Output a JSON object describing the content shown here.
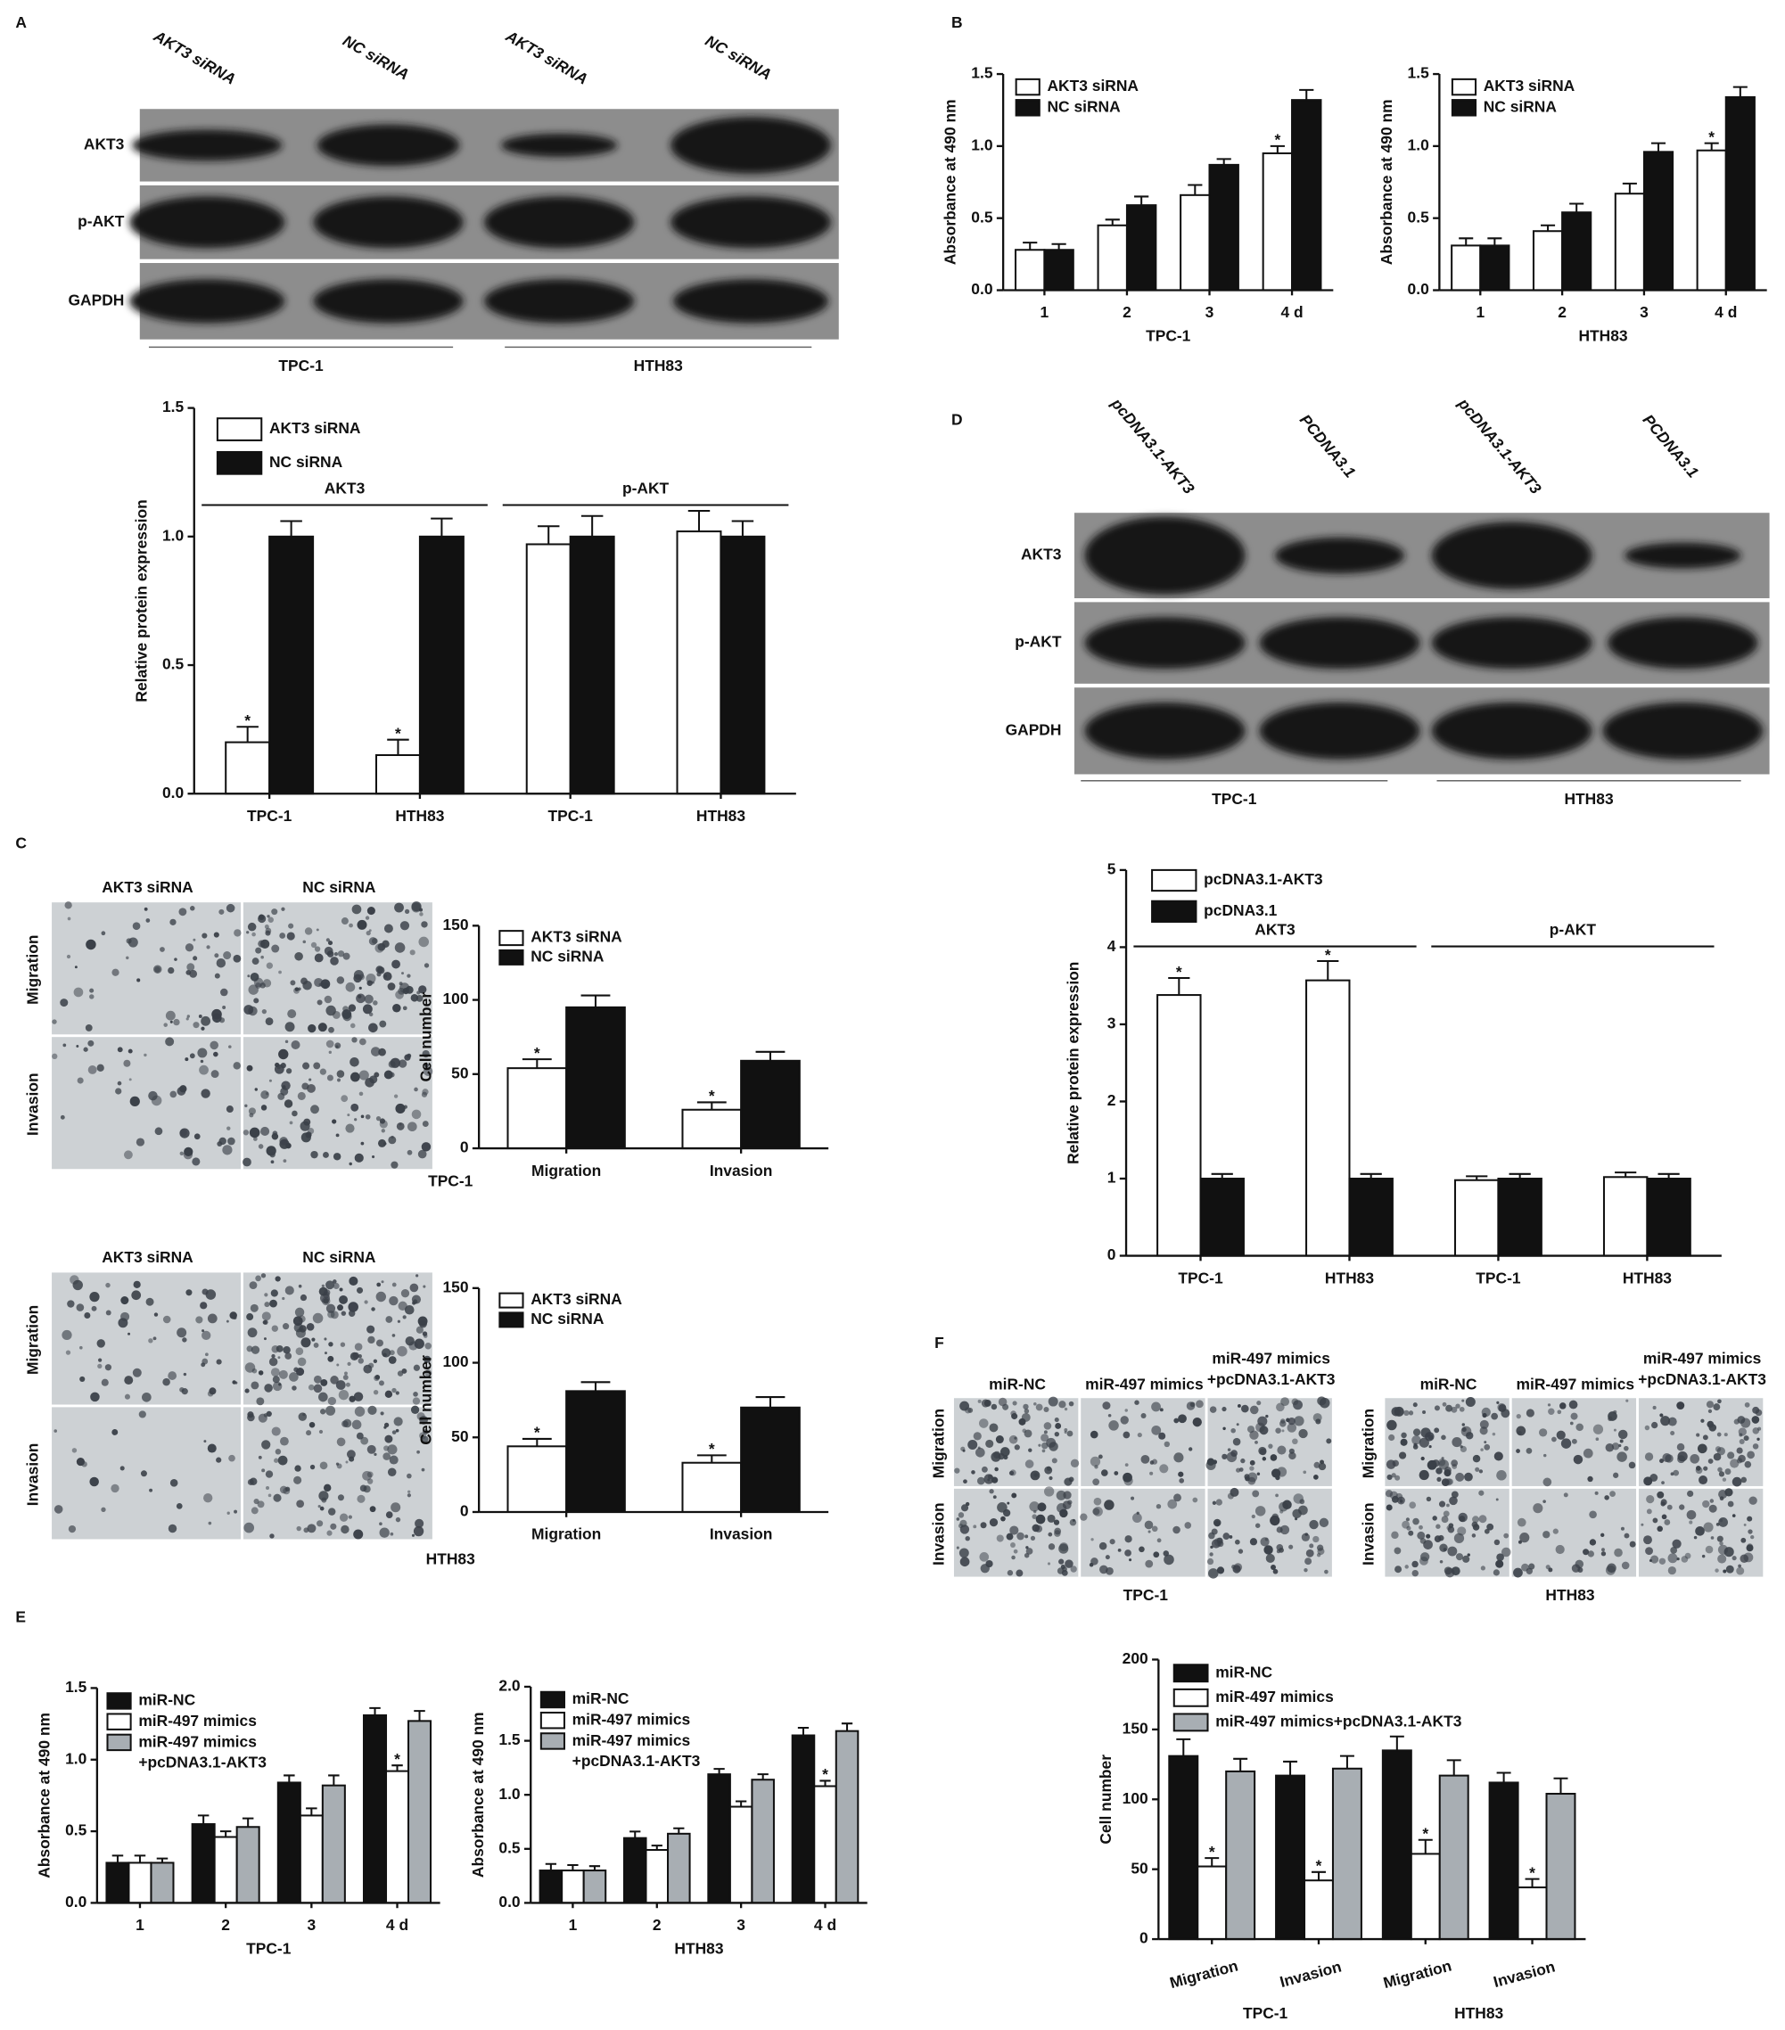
{
  "figure": {
    "panel_labels": [
      "A",
      "B",
      "C",
      "D",
      "E",
      "F"
    ],
    "blots": [
      {
        "lanes": [
          "AKT3 siRNA",
          "NC siRNA",
          "AKT3 siRNA",
          "NC siRNA"
        ],
        "rows": [
          "AKT3",
          "p-AKT",
          "GAPDH"
        ],
        "groups": [
          "TPC-1",
          "HTH83"
        ]
      },
      {
        "lanes": [
          "pcDNA3.1-AKT3",
          "PCDNA3.1",
          "pcDNA3.1-AKT3",
          "PCDNA3.1"
        ],
        "rows": [
          "AKT3",
          "p-AKT",
          "GAPDH"
        ],
        "groups": [
          "TPC-1",
          "HTH83"
        ]
      }
    ],
    "micrographs": [
      {
        "columns": [
          "AKT3 siRNA",
          "NC siRNA"
        ],
        "rows": [
          "Migration",
          "Invasion"
        ],
        "label": "TPC-1"
      },
      {
        "columns": [
          "AKT3 siRNA",
          "NC siRNA"
        ],
        "rows": [
          "Migration",
          "Invasion"
        ],
        "label": "HTH83"
      },
      {
        "columns": [
          "miR-NC",
          "miR-497 mimics",
          "miR-497 mimics\n+pcDNA3.1-AKT3"
        ],
        "rows": [
          "Migration",
          "Invasion"
        ],
        "label": "TPC-1"
      },
      {
        "columns": [
          "miR-NC",
          "miR-497 mimics",
          "miR-497 mimics\n+pcDNA3.1-AKT3"
        ],
        "rows": [
          "Migration",
          "Invasion"
        ],
        "label": "HTH83"
      }
    ]
  },
  "chart_data": [
    {
      "type": "bar",
      "ylabel": "Relative protein expression",
      "categories": [
        "TPC-1",
        "HTH83",
        "TPC-1",
        "HTH83"
      ],
      "series": [
        {
          "name": "AKT3 siRNA",
          "color": "#ffffff",
          "values": [
            0.2,
            0.15,
            0.97,
            1.02
          ],
          "errors": [
            0.06,
            0.06,
            0.07,
            0.08
          ]
        },
        {
          "name": "NC siRNA",
          "color": "#111111",
          "values": [
            1.0,
            1.0,
            1.0,
            1.0
          ],
          "errors": [
            0.06,
            0.07,
            0.08,
            0.06
          ]
        }
      ],
      "ylim": [
        0,
        1.5
      ],
      "yticks": [
        {
          "value": 0,
          "label": "0.0"
        },
        0.5,
        {
          "value": 1,
          "label": "1.0"
        },
        1.5
      ],
      "groups": [
        {
          "label": "AKT3",
          "first": 0,
          "last": 1
        },
        {
          "label": "p-AKT",
          "first": 2,
          "last": 3
        }
      ],
      "annotations": [
        {
          "text": "*",
          "series": 0,
          "index": 0
        },
        {
          "text": "*",
          "series": 0,
          "index": 1
        }
      ],
      "legend": "upper left"
    },
    {
      "type": "bar",
      "ylabel": "Absorbance at 490 nm",
      "xlabel": "TPC-1",
      "categories": [
        "1",
        "2",
        "3",
        "4 d"
      ],
      "series": [
        {
          "name": "AKT3 siRNA",
          "color": "#ffffff",
          "values": [
            0.28,
            0.45,
            0.66,
            0.95
          ],
          "errors": [
            0.05,
            0.04,
            0.07,
            0.05
          ]
        },
        {
          "name": "NC siRNA",
          "color": "#111111",
          "values": [
            0.28,
            0.59,
            0.87,
            1.32
          ],
          "errors": [
            0.04,
            0.06,
            0.04,
            0.07
          ]
        }
      ],
      "ylim": [
        0,
        1.5
      ],
      "yticks": [
        {
          "value": 0,
          "label": "0.0"
        },
        0.5,
        {
          "value": 1,
          "label": "1.0"
        },
        1.5
      ],
      "annotations": [
        {
          "text": "*",
          "series": 0,
          "index": 3
        }
      ],
      "legend": "upper left"
    },
    {
      "type": "bar",
      "ylabel": "Absorbance at 490 nm",
      "xlabel": "HTH83",
      "categories": [
        "1",
        "2",
        "3",
        "4 d"
      ],
      "series": [
        {
          "name": "AKT3 siRNA",
          "color": "#ffffff",
          "values": [
            0.31,
            0.41,
            0.67,
            0.97
          ],
          "errors": [
            0.05,
            0.04,
            0.07,
            0.05
          ]
        },
        {
          "name": "NC siRNA",
          "color": "#111111",
          "values": [
            0.31,
            0.54,
            0.96,
            1.34
          ],
          "errors": [
            0.05,
            0.06,
            0.06,
            0.07
          ]
        }
      ],
      "ylim": [
        0,
        1.5
      ],
      "yticks": [
        {
          "value": 0,
          "label": "0.0"
        },
        0.5,
        {
          "value": 1,
          "label": "1.0"
        },
        1.5
      ],
      "annotations": [
        {
          "text": "*",
          "series": 0,
          "index": 3
        }
      ],
      "legend": "upper left"
    },
    {
      "type": "bar",
      "ylabel": "Cell number",
      "categories": [
        "Migration",
        "Invasion"
      ],
      "series": [
        {
          "name": "AKT3 siRNA",
          "color": "#ffffff",
          "values": [
            54,
            26
          ],
          "errors": [
            6,
            5
          ]
        },
        {
          "name": "NC siRNA",
          "color": "#111111",
          "values": [
            95,
            59
          ],
          "errors": [
            8,
            6
          ]
        }
      ],
      "ylim": [
        0,
        150
      ],
      "yticks": [
        0,
        50,
        100,
        150
      ],
      "annotations": [
        {
          "text": "*",
          "series": 0,
          "index": 0
        },
        {
          "text": "*",
          "series": 0,
          "index": 1
        }
      ],
      "legend": "upper left"
    },
    {
      "type": "bar",
      "ylabel": "Cell number",
      "categories": [
        "Migration",
        "Invasion"
      ],
      "series": [
        {
          "name": "AKT3 siRNA",
          "color": "#ffffff",
          "values": [
            44,
            33
          ],
          "errors": [
            5,
            5
          ]
        },
        {
          "name": "NC siRNA",
          "color": "#111111",
          "values": [
            81,
            70
          ],
          "errors": [
            6,
            7
          ]
        }
      ],
      "ylim": [
        0,
        150
      ],
      "yticks": [
        0,
        50,
        100,
        150
      ],
      "annotations": [
        {
          "text": "*",
          "series": 0,
          "index": 0
        },
        {
          "text": "*",
          "series": 0,
          "index": 1
        }
      ],
      "legend": "upper left"
    },
    {
      "type": "bar",
      "ylabel": "Relative protein expression",
      "categories": [
        "TPC-1",
        "HTH83",
        "TPC-1",
        "HTH83"
      ],
      "series": [
        {
          "name": "pcDNA3.1-AKT3",
          "color": "#ffffff",
          "values": [
            3.38,
            3.57,
            0.98,
            1.02
          ],
          "errors": [
            0.22,
            0.25,
            0.05,
            0.06
          ]
        },
        {
          "name": "pcDNA3.1",
          "color": "#111111",
          "values": [
            1.0,
            1.0,
            1.0,
            1.0
          ],
          "errors": [
            0.06,
            0.06,
            0.06,
            0.06
          ]
        }
      ],
      "ylim": [
        0,
        5
      ],
      "yticks": [
        0,
        1,
        2,
        3,
        4,
        5
      ],
      "groups": [
        {
          "label": "AKT3",
          "first": 0,
          "last": 1
        },
        {
          "label": "p-AKT",
          "first": 2,
          "last": 3
        }
      ],
      "annotations": [
        {
          "text": "*",
          "series": 0,
          "index": 0
        },
        {
          "text": "*",
          "series": 0,
          "index": 1
        }
      ],
      "legend": "upper left"
    },
    {
      "type": "bar",
      "ylabel": "Absorbance at 490 nm",
      "xlabel": "TPC-1",
      "categories": [
        "1",
        "2",
        "3",
        "4 d"
      ],
      "series": [
        {
          "name": "miR-NC",
          "color": "#111111",
          "values": [
            0.28,
            0.55,
            0.84,
            1.31
          ],
          "errors": [
            0.05,
            0.06,
            0.05,
            0.05
          ]
        },
        {
          "name": "miR-497 mimics",
          "color": "#ffffff",
          "values": [
            0.28,
            0.46,
            0.61,
            0.92
          ],
          "errors": [
            0.05,
            0.04,
            0.05,
            0.04
          ]
        },
        {
          "name": "miR-497 mimics\n+pcDNA3.1-AKT3",
          "color": "#a8aeb3",
          "values": [
            0.28,
            0.53,
            0.82,
            1.27
          ],
          "errors": [
            0.03,
            0.06,
            0.07,
            0.07
          ]
        }
      ],
      "ylim": [
        0,
        1.5
      ],
      "yticks": [
        {
          "value": 0,
          "label": "0.0"
        },
        0.5,
        {
          "value": 1,
          "label": "1.0"
        },
        1.5
      ],
      "annotations": [
        {
          "text": "*",
          "series": 1,
          "index": 3
        }
      ],
      "legend": "upper left"
    },
    {
      "type": "bar",
      "ylabel": "Absorbance at 490 nm",
      "xlabel": "HTH83",
      "categories": [
        "1",
        "2",
        "3",
        "4 d"
      ],
      "series": [
        {
          "name": "miR-NC",
          "color": "#111111",
          "values": [
            0.3,
            0.6,
            1.19,
            1.55
          ],
          "errors": [
            0.06,
            0.06,
            0.05,
            0.07
          ]
        },
        {
          "name": "miR-497 mimics",
          "color": "#ffffff",
          "values": [
            0.3,
            0.49,
            0.89,
            1.08
          ],
          "errors": [
            0.05,
            0.04,
            0.05,
            0.05
          ]
        },
        {
          "name": "miR-497 mimics\n+pcDNA3.1-AKT3",
          "color": "#a8aeb3",
          "values": [
            0.3,
            0.64,
            1.14,
            1.59
          ],
          "errors": [
            0.04,
            0.05,
            0.05,
            0.07
          ]
        }
      ],
      "ylim": [
        0,
        2
      ],
      "yticks": [
        {
          "value": 0,
          "label": "0.0"
        },
        0.5,
        {
          "value": 1,
          "label": "1.0"
        },
        1.5,
        {
          "value": 2,
          "label": "2.0"
        }
      ],
      "annotations": [
        {
          "text": "*",
          "series": 1,
          "index": 3
        }
      ],
      "legend": "upper left"
    },
    {
      "type": "bar",
      "ylabel": "Cell number",
      "categories": [
        "Migration",
        "Invasion",
        "Migration",
        "Invasion"
      ],
      "series": [
        {
          "name": "miR-NC",
          "color": "#111111",
          "values": [
            131,
            117,
            135,
            112
          ],
          "errors": [
            12,
            10,
            10,
            7
          ]
        },
        {
          "name": "miR-497 mimics",
          "color": "#ffffff",
          "values": [
            52,
            42,
            61,
            37
          ],
          "errors": [
            6,
            6,
            10,
            6
          ]
        },
        {
          "name": "miR-497 mimics+pcDNA3.1-AKT3",
          "color": "#a8aeb3",
          "values": [
            120,
            122,
            117,
            104
          ],
          "errors": [
            9,
            9,
            11,
            11
          ]
        }
      ],
      "ylim": [
        0,
        200
      ],
      "yticks": [
        0,
        50,
        100,
        150,
        200
      ],
      "category_groups": [
        {
          "label": "TPC-1",
          "first": 0,
          "last": 1
        },
        {
          "label": "HTH83",
          "first": 2,
          "last": 3
        }
      ],
      "annotations": [
        {
          "text": "*",
          "series": 1,
          "index": 0
        },
        {
          "text": "*",
          "series": 1,
          "index": 1
        },
        {
          "text": "*",
          "series": 1,
          "index": 2
        },
        {
          "text": "*",
          "series": 1,
          "index": 3
        }
      ],
      "legend": "upper left"
    }
  ]
}
